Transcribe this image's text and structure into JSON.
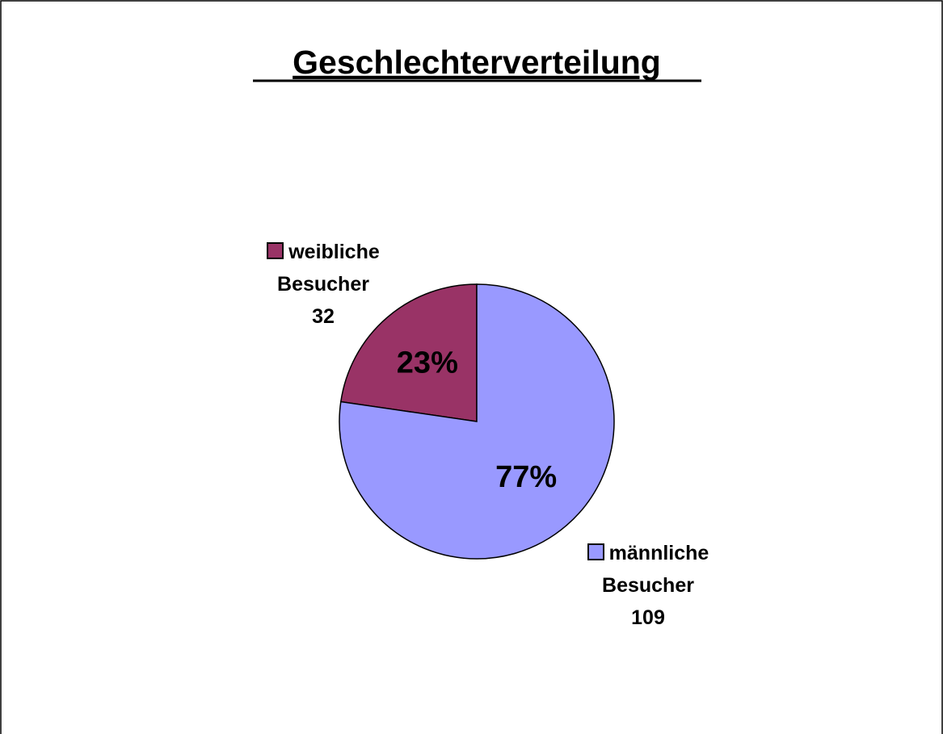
{
  "chart_data": {
    "type": "pie",
    "title": "Geschlechterverteilung",
    "categories": [
      "weibliche Besucher",
      "männliche Besucher"
    ],
    "values": [
      32,
      109
    ],
    "value_labels": [
      "23%",
      "77%"
    ],
    "colors": [
      "#993366",
      "#9999ff"
    ]
  }
}
